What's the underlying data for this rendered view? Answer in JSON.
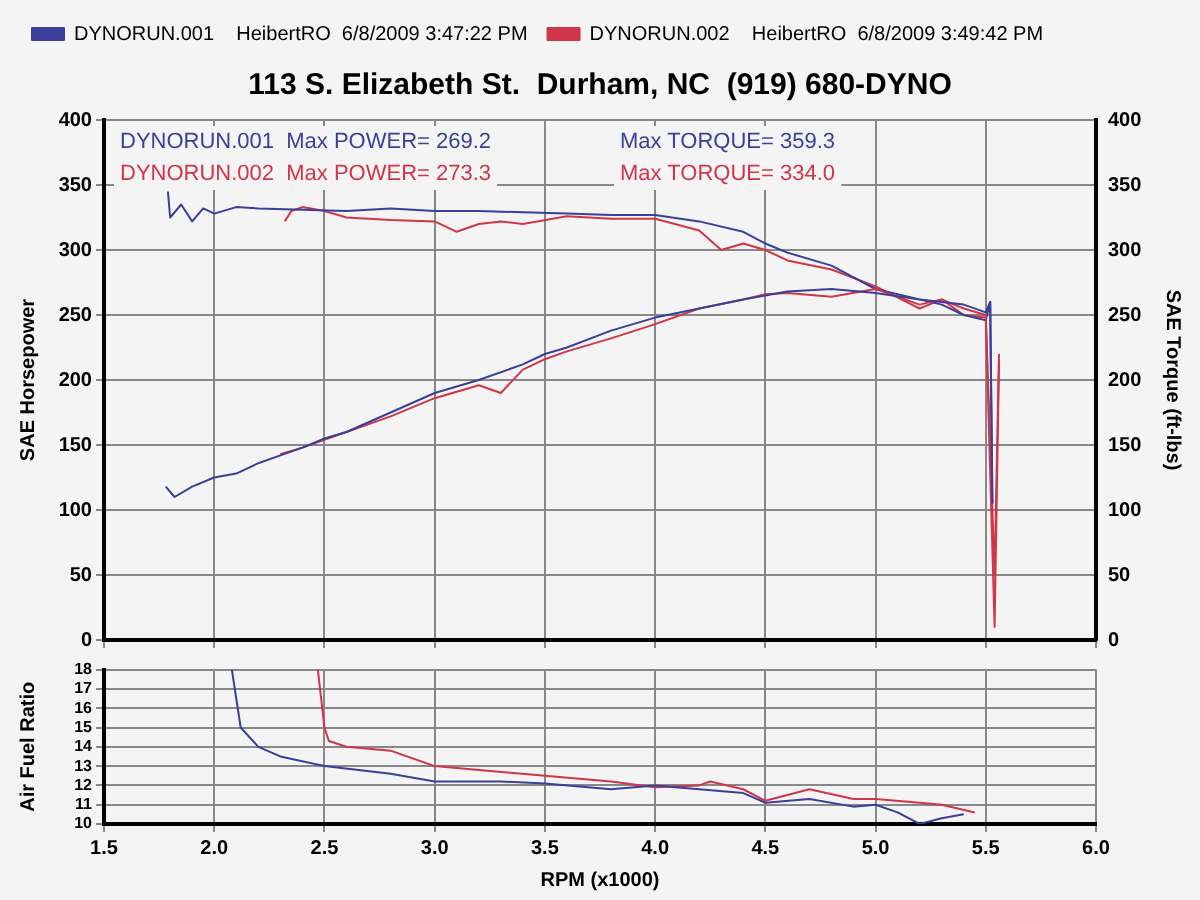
{
  "chart_data": [
    {
      "type": "line",
      "title": "113 S. Elizabeth St.  Durham, NC  (919) 680-DYNO",
      "ylabel": "SAE Horsepower",
      "y2label": "SAE Torque (ft-lbs)",
      "legend": "top left",
      "grid": true,
      "tick_labels": "y",
      "marker": "none",
      "line_style": "solid",
      "xlim": [
        1.5,
        6
      ],
      "xticks": [
        {
          "value": 1.5,
          "label": null
        },
        {
          "value": 2,
          "label": null
        },
        {
          "value": 2.5,
          "label": null
        },
        {
          "value": 3,
          "label": null
        },
        {
          "value": 3.5,
          "label": null
        },
        {
          "value": 4,
          "label": null
        },
        {
          "value": 4.5,
          "label": null
        },
        {
          "value": 5,
          "label": null
        },
        {
          "value": 5.5,
          "label": null
        },
        {
          "value": 6,
          "label": null
        }
      ],
      "ylim": [
        0,
        400
      ],
      "yticks": [
        0,
        50,
        100,
        150,
        200,
        250,
        300,
        350,
        400
      ],
      "y2lim": [
        0,
        400
      ],
      "y2ticks": [
        0,
        50,
        100,
        150,
        200,
        250,
        300,
        350,
        400
      ],
      "annotations": [
        "DYNORUN.001  Max POWER= 269.2",
        "Max TORQUE= 359.3",
        "DYNORUN.002  Max POWER= 273.3",
        "Max TORQUE= 334.0"
      ],
      "series": [
        {
          "name": "DYNORUN.001    HeibertRO  6/8/2009 3:47:22 PM",
          "color": "#3a3f9a",
          "x": [
            1.78,
            1.82,
            1.9,
            2.0,
            2.1,
            2.2,
            2.3,
            2.4,
            2.5,
            2.6,
            2.8,
            3.0,
            3.2,
            3.4,
            3.5,
            3.6,
            3.8,
            4.0,
            4.2,
            4.4,
            4.5,
            4.6,
            4.8,
            5.0,
            5.2,
            5.4,
            5.5,
            5.52,
            5.53
          ],
          "values": [
            118,
            110,
            118,
            125,
            128,
            136,
            142,
            148,
            155,
            160,
            175,
            190,
            200,
            212,
            220,
            225,
            238,
            248,
            255,
            262,
            265,
            268,
            270,
            267,
            262,
            258,
            252,
            260,
            105
          ]
        },
        {
          "name": "DYNORUN.002    HeibertRO  6/8/2009 3:49:42 PM",
          "color": "#d0354a",
          "x": [
            2.3,
            2.4,
            2.5,
            2.6,
            2.8,
            3.0,
            3.2,
            3.3,
            3.4,
            3.5,
            3.6,
            3.8,
            4.0,
            4.2,
            4.4,
            4.5,
            4.6,
            4.8,
            5.0,
            5.2,
            5.3,
            5.4,
            5.5,
            5.54,
            5.56
          ],
          "values": [
            143,
            148,
            154,
            160,
            172,
            186,
            196,
            190,
            208,
            216,
            222,
            232,
            243,
            255,
            262,
            266,
            267,
            264,
            270,
            258,
            262,
            255,
            250,
            50,
            220
          ]
        },
        {
          "color": "#3a3f9a",
          "axis": "y2",
          "x": [
            1.79,
            1.8,
            1.85,
            1.9,
            1.95,
            2.0,
            2.1,
            2.2,
            2.4,
            2.6,
            2.8,
            3.0,
            3.2,
            3.4,
            3.6,
            3.8,
            4.0,
            4.2,
            4.4,
            4.5,
            4.6,
            4.8,
            5.0,
            5.2,
            5.3,
            5.4,
            5.5,
            5.52,
            5.53
          ],
          "values": [
            345,
            325,
            335,
            322,
            332,
            328,
            333,
            332,
            331,
            330,
            332,
            330,
            330,
            329,
            328,
            327,
            327,
            322,
            314,
            305,
            298,
            288,
            270,
            262,
            258,
            250,
            246,
            260,
            105
          ]
        },
        {
          "color": "#d0354a",
          "axis": "y2",
          "x": [
            2.32,
            2.35,
            2.4,
            2.5,
            2.6,
            2.8,
            3.0,
            3.1,
            3.2,
            3.3,
            3.4,
            3.6,
            3.8,
            4.0,
            4.2,
            4.3,
            4.4,
            4.5,
            4.6,
            4.8,
            5.0,
            5.2,
            5.3,
            5.4,
            5.5,
            5.54,
            5.56
          ],
          "values": [
            322,
            330,
            333,
            330,
            325,
            323,
            322,
            314,
            320,
            322,
            320,
            326,
            324,
            324,
            315,
            300,
            305,
            300,
            292,
            285,
            272,
            255,
            262,
            250,
            248,
            10,
            215
          ]
        }
      ]
    },
    {
      "type": "line",
      "xlabel": "RPM (x1000)",
      "ylabel": "Air Fuel Ratio",
      "grid": true,
      "marker": "none",
      "line_style": "solid",
      "xlim": [
        1.5,
        6
      ],
      "xticks": [
        1.5,
        {
          "value": 2,
          "label": "2.0"
        },
        2.5,
        {
          "value": 3,
          "label": "3.0"
        },
        3.5,
        {
          "value": 4,
          "label": "4.0"
        },
        4.5,
        {
          "value": 5,
          "label": "5.0"
        },
        5.5,
        {
          "value": 6,
          "label": "6.0"
        }
      ],
      "ylim": [
        10,
        18
      ],
      "yticks": [
        10,
        11,
        12,
        13,
        14,
        15,
        16,
        17,
        18
      ],
      "series": [
        {
          "color": "#3a3f9a",
          "x": [
            2.08,
            2.12,
            2.2,
            2.3,
            2.5,
            2.8,
            3.0,
            3.3,
            3.5,
            3.8,
            4.0,
            4.2,
            4.4,
            4.5,
            4.7,
            4.9,
            5.0,
            5.1,
            5.2,
            5.3,
            5.4
          ],
          "values": [
            18,
            15,
            14,
            13.5,
            13,
            12.6,
            12.2,
            12.2,
            12.1,
            11.8,
            12,
            11.8,
            11.6,
            11.1,
            11.3,
            10.9,
            11,
            10.6,
            10,
            10.3,
            10.5
          ]
        },
        {
          "color": "#d0354a",
          "x": [
            2.47,
            2.5,
            2.52,
            2.6,
            2.8,
            3.0,
            3.2,
            3.5,
            3.8,
            4.0,
            4.2,
            4.25,
            4.4,
            4.5,
            4.7,
            4.9,
            5.0,
            5.2,
            5.3,
            5.45
          ],
          "values": [
            18,
            15,
            14.3,
            14,
            13.8,
            13,
            12.8,
            12.5,
            12.2,
            11.9,
            12,
            12.2,
            11.8,
            11.2,
            11.8,
            11.3,
            11.3,
            11.1,
            11,
            10.6
          ]
        }
      ]
    }
  ]
}
